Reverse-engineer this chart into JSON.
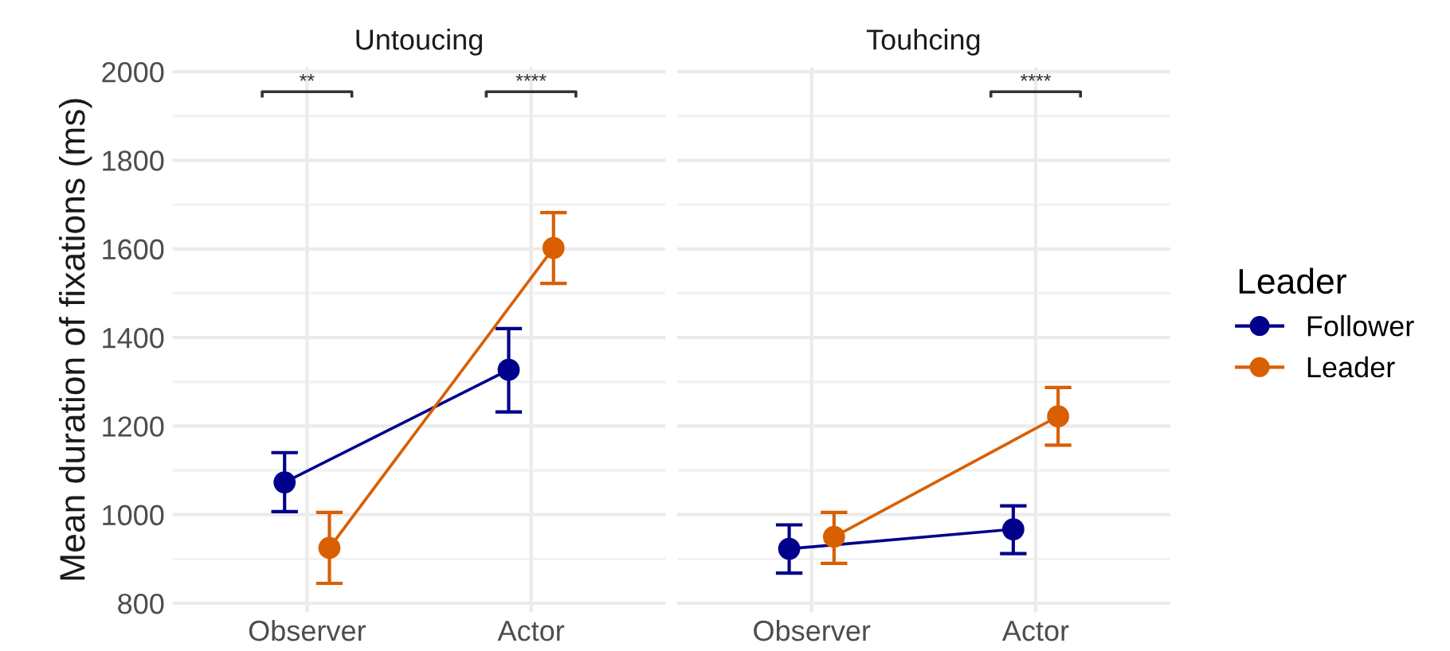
{
  "chart_data": [
    {
      "type": "line",
      "title": "Untoucing",
      "ylabel": "Mean duration of fixations (ms)",
      "categories": [
        "Observer",
        "Actor"
      ],
      "ylim": [
        780,
        2010
      ],
      "yticks": [
        800,
        1000,
        1200,
        1400,
        1600,
        1800,
        2000
      ],
      "grid": true,
      "legend": "right",
      "legend_title": "Leader",
      "marker": "circle",
      "line_style": "solid",
      "series": [
        {
          "name": "Follower",
          "color": "#00008b",
          "values": [
            1073,
            1327
          ],
          "errors": [
            [
              1007,
              1140
            ],
            [
              1232,
              1420
            ]
          ]
        },
        {
          "name": "Leader",
          "color": "#d95f02",
          "values": [
            925,
            1602
          ],
          "errors": [
            [
              845,
              1005
            ],
            [
              1522,
              1682
            ]
          ]
        }
      ],
      "annotations": [
        "**",
        "****"
      ]
    },
    {
      "type": "line",
      "title": "Touhcing",
      "categories": [
        "Observer",
        "Actor"
      ],
      "ylim": [
        780,
        2010
      ],
      "yticks": [
        800,
        1000,
        1200,
        1400,
        1600,
        1800,
        2000
      ],
      "tick_labels": "x",
      "grid": true,
      "marker": "circle",
      "line_style": "solid",
      "series": [
        {
          "color": "#00008b",
          "values": [
            923,
            967
          ],
          "errors": [
            [
              868,
              977
            ],
            [
              912,
              1020
            ]
          ]
        },
        {
          "color": "#d95f02",
          "values": [
            950,
            1222
          ],
          "errors": [
            [
              890,
              1005
            ],
            [
              1157,
              1287
            ]
          ]
        }
      ],
      "annotations": [
        "****"
      ]
    }
  ]
}
